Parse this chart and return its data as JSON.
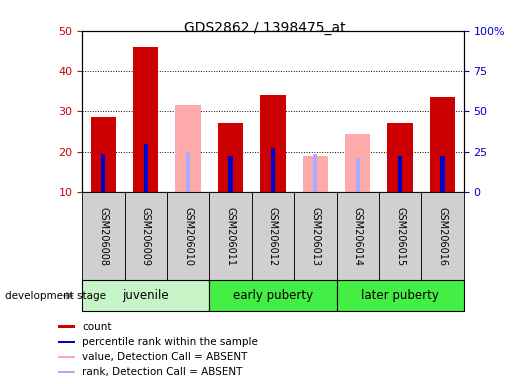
{
  "title": "GDS2862 / 1398475_at",
  "samples": [
    "GSM206008",
    "GSM206009",
    "GSM206010",
    "GSM206011",
    "GSM206012",
    "GSM206013",
    "GSM206014",
    "GSM206015",
    "GSM206016"
  ],
  "count_values": [
    28.5,
    46.0,
    null,
    27.0,
    34.0,
    null,
    null,
    27.0,
    33.5
  ],
  "rank_values": [
    19.5,
    22.0,
    null,
    19.0,
    21.0,
    null,
    18.5,
    19.0,
    19.0
  ],
  "absent_value_values": [
    null,
    null,
    31.5,
    null,
    null,
    19.0,
    24.5,
    null,
    null
  ],
  "absent_rank_values": [
    null,
    null,
    20.0,
    null,
    null,
    19.5,
    18.5,
    null,
    null
  ],
  "ylim_left": [
    10,
    50
  ],
  "ylim_right": [
    0,
    100
  ],
  "yticks_left": [
    10,
    20,
    30,
    40,
    50
  ],
  "yticks_right": [
    0,
    25,
    50,
    75,
    100
  ],
  "ytick_labels_right": [
    "0",
    "25",
    "50",
    "75",
    "100%"
  ],
  "count_color": "#cc0000",
  "rank_color": "#0000cc",
  "absent_value_color": "#ffaaaa",
  "absent_rank_color": "#aaaaff",
  "plot_bg_color": "#ffffff",
  "bar_bottom": 10,
  "group_labels": [
    "juvenile",
    "early puberty",
    "later puberty"
  ],
  "group_starts": [
    0,
    3,
    6
  ],
  "group_ends": [
    3,
    6,
    9
  ],
  "group_colors": [
    "#c8f5c8",
    "#44ee44",
    "#44ee44"
  ],
  "development_stage_label": "development stage",
  "legend_items": [
    {
      "color": "#cc0000",
      "label": "count"
    },
    {
      "color": "#0000cc",
      "label": "percentile rank within the sample"
    },
    {
      "color": "#ffaaaa",
      "label": "value, Detection Call = ABSENT"
    },
    {
      "color": "#aaaaff",
      "label": "rank, Detection Call = ABSENT"
    }
  ]
}
